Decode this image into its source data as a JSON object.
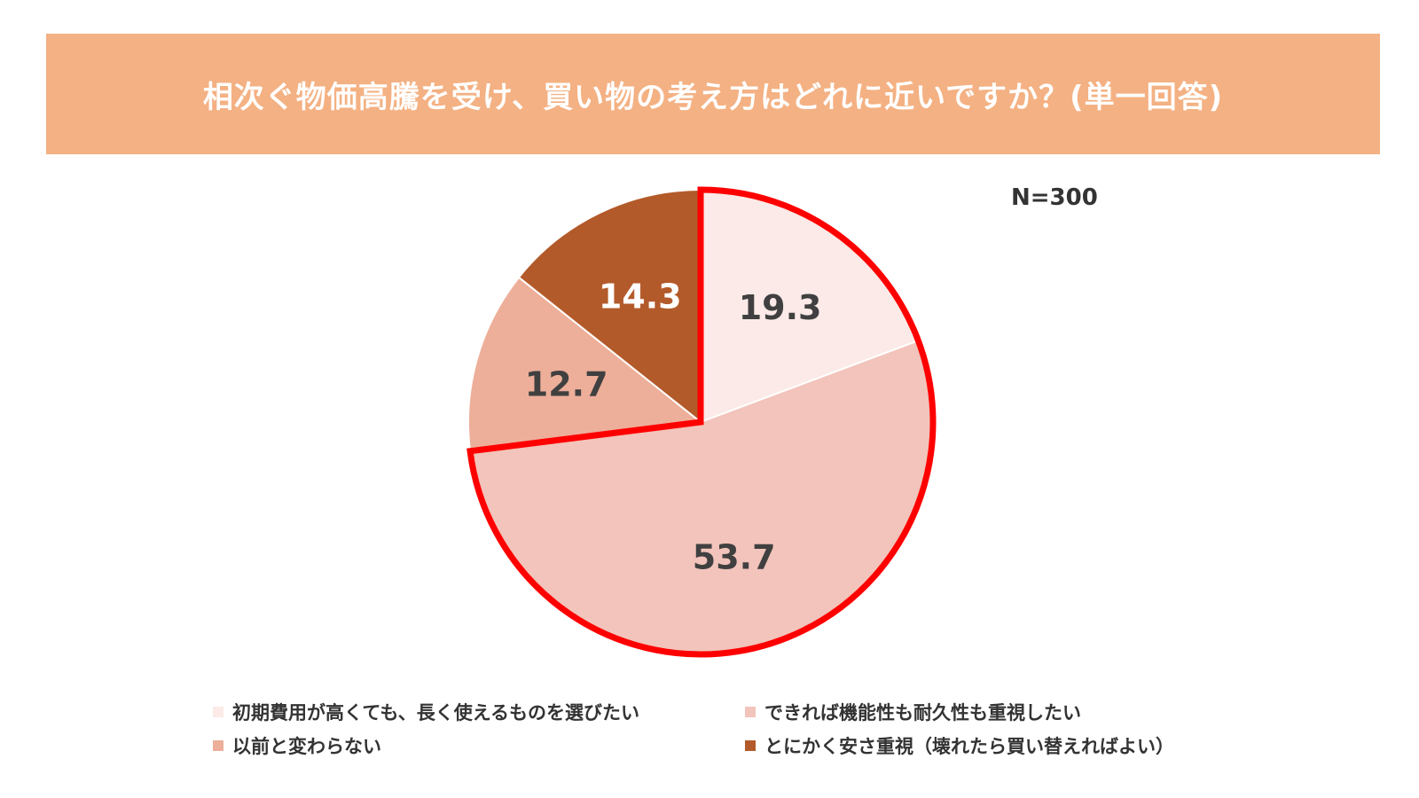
{
  "header": {
    "title": "相次ぐ物価高騰を受け、買い物の考え方はどれに近いですか？(単一回答)",
    "background": "#F4B183"
  },
  "sample_size_label": "N=300",
  "highlight_color": "#FF0000",
  "chart_data": {
    "type": "pie",
    "title": "相次ぐ物価高騰を受け、買い物の考え方はどれに近いですか？(単一回答)",
    "note": "N=300",
    "legend_position": "bottom",
    "start_angle_deg": 0,
    "direction": "clockwise",
    "slices": [
      {
        "label": "初期費用が高くても、長く使えるものを選びたい",
        "value": 19.3,
        "color": "#FBEAE7",
        "label_color": "#404040"
      },
      {
        "label": "できれば機能性も耐久性も重視したい",
        "value": 53.7,
        "color": "#F2C4BB",
        "label_color": "#404040"
      },
      {
        "label": "以前と変わらない",
        "value": 12.7,
        "color": "#EDAF9A",
        "label_color": "#404040"
      },
      {
        "label": "とにかく安さ重視（壊れたら買い替えればよい）",
        "value": 14.3,
        "color": "#B35A2A",
        "label_color": "#FFFFFF"
      }
    ],
    "highlighted_slices": [
      0,
      1
    ]
  }
}
